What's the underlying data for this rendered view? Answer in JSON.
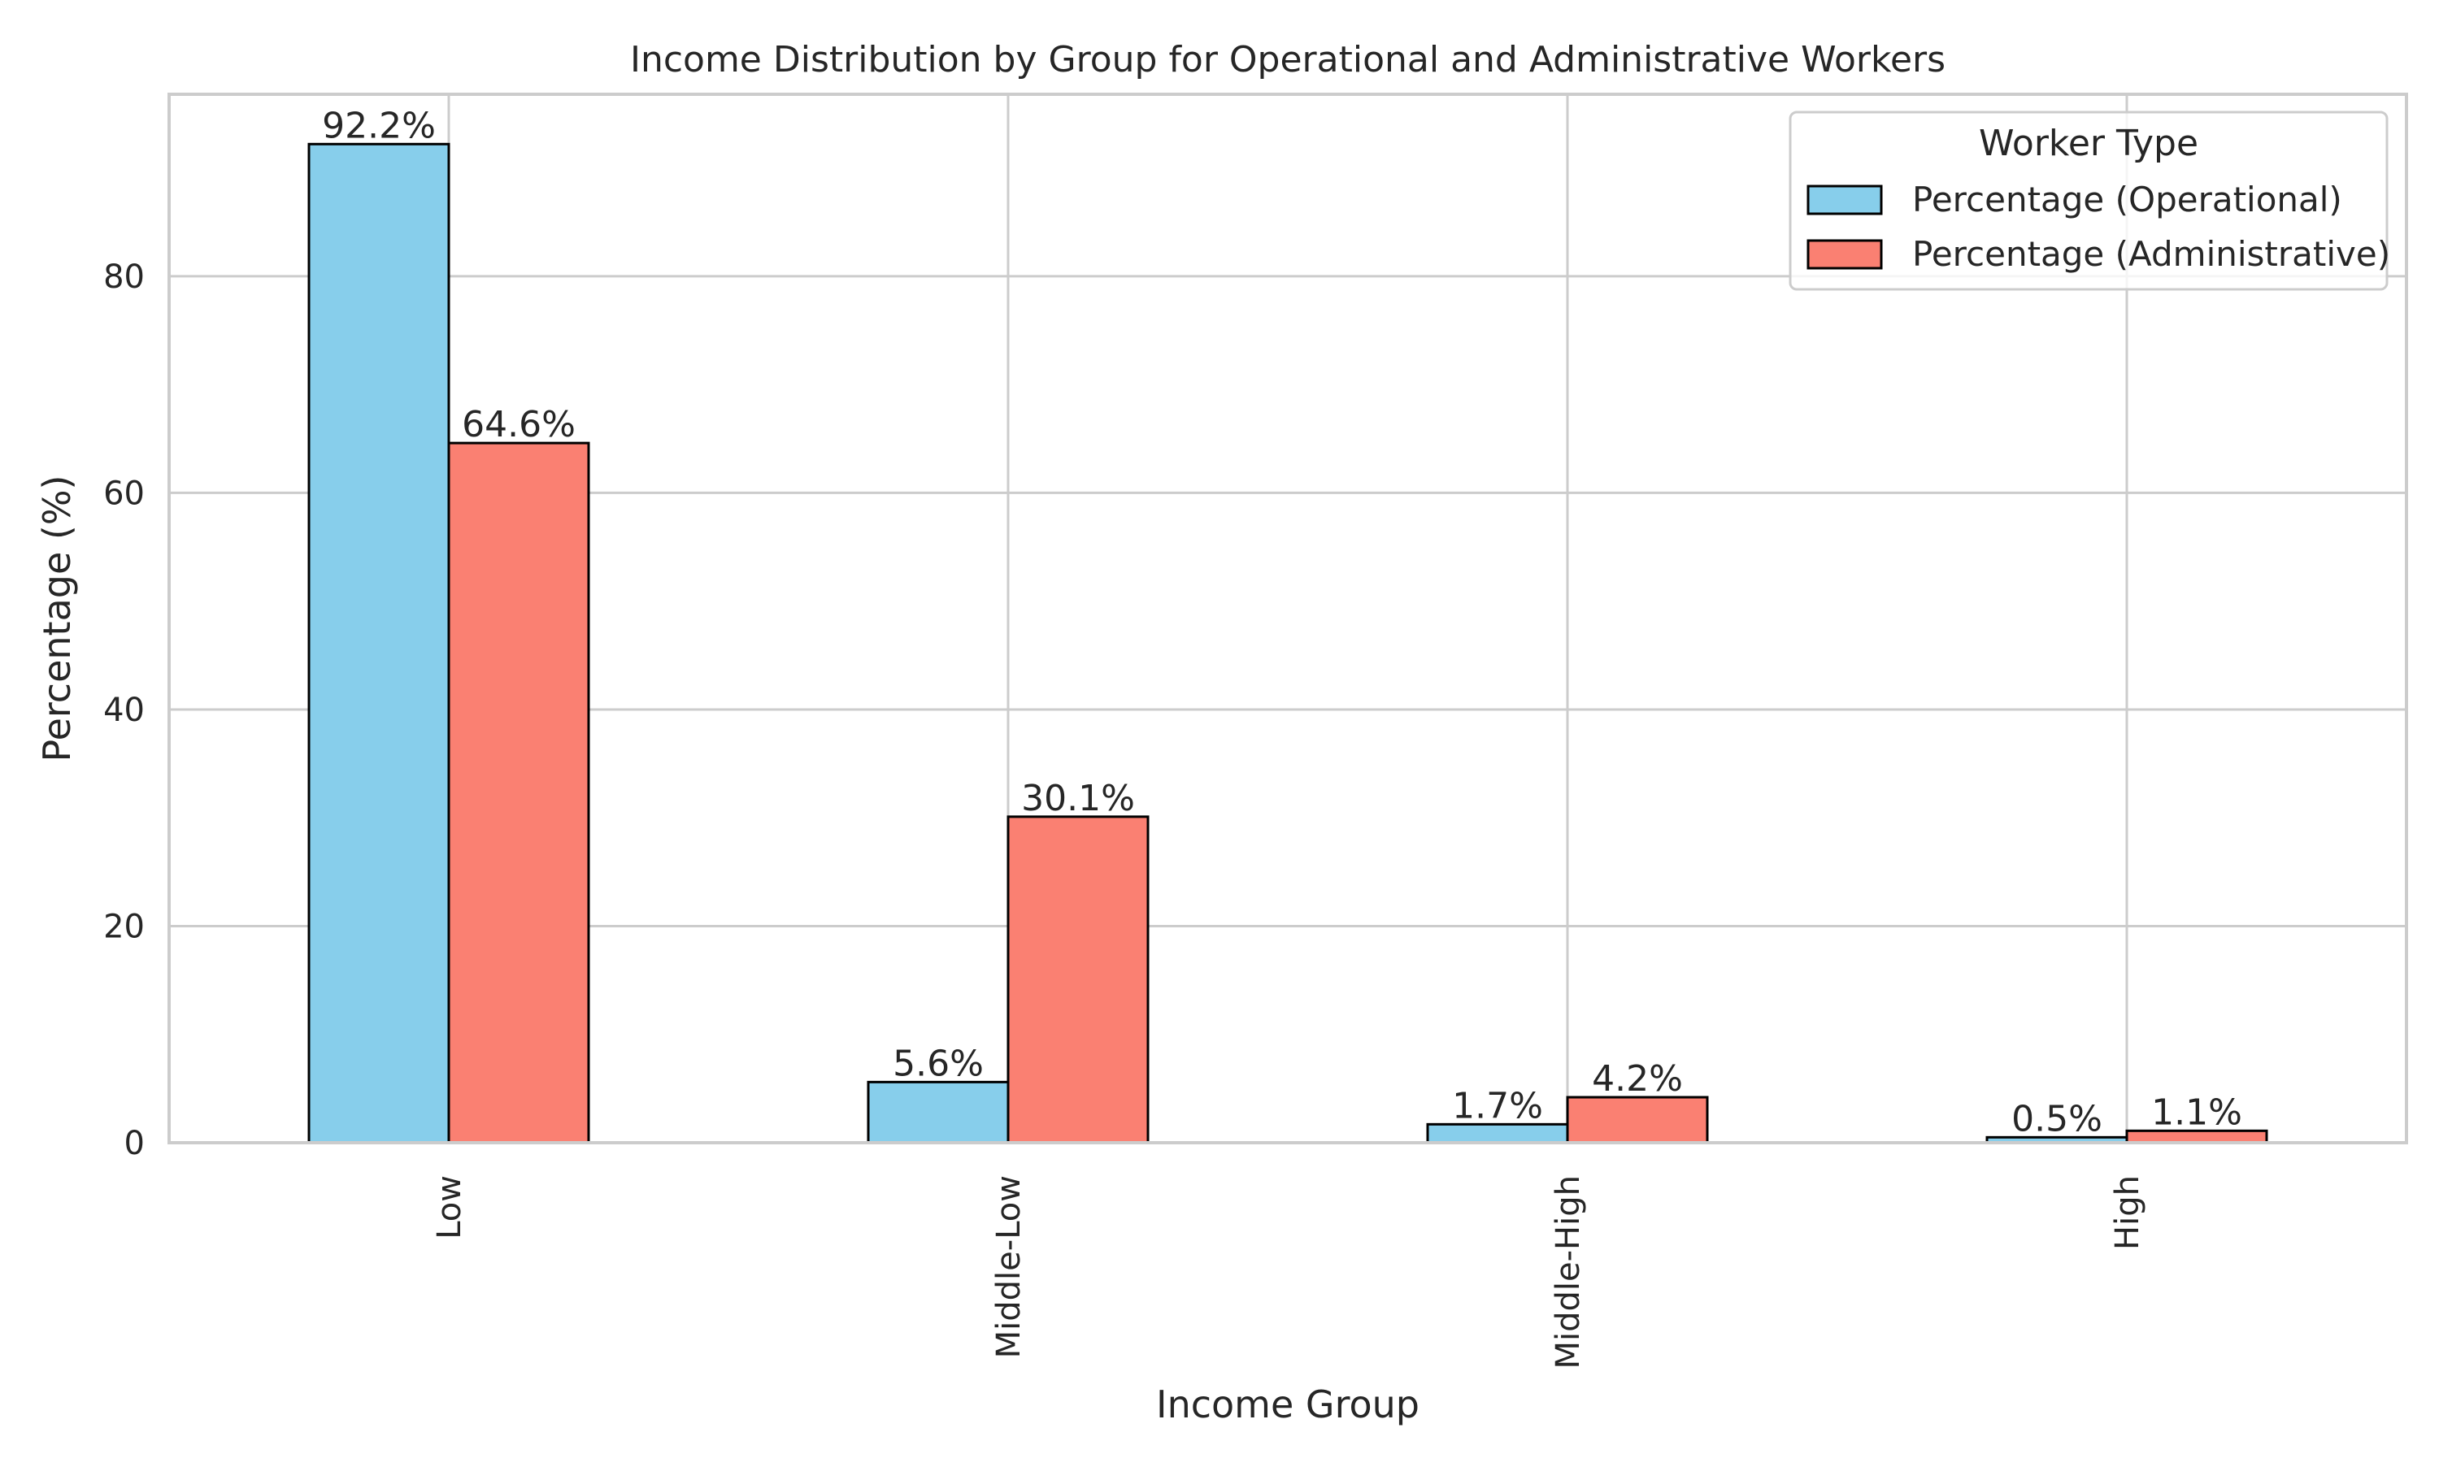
{
  "chart_data": {
    "type": "bar",
    "title": "Income Distribution by Group for Operational and Administrative Workers",
    "xlabel": "Income Group",
    "ylabel": "Percentage (%)",
    "categories": [
      "Low",
      "Middle-Low",
      "Middle-High",
      "High"
    ],
    "series": [
      {
        "name": "Percentage (Operational)",
        "values": [
          92.2,
          5.6,
          1.7,
          0.5
        ],
        "labels": [
          "92.2%",
          "5.6%",
          "1.7%",
          "0.5%"
        ],
        "color": "#87ceeb"
      },
      {
        "name": "Percentage (Administrative)",
        "values": [
          64.6,
          30.1,
          4.2,
          1.1
        ],
        "labels": [
          "64.6%",
          "30.1%",
          "4.2%",
          "1.1%"
        ],
        "color": "#fa8072"
      }
    ],
    "ylim": [
      0,
      96.8
    ],
    "yticks": [
      0,
      20,
      40,
      60,
      80
    ],
    "grid": true,
    "legend": {
      "title": "Worker Type",
      "placement": "top-right"
    },
    "colors": {
      "grid": "#cccccc",
      "axes_edge": "#cccccc",
      "bar_edge": "#000000",
      "text": "#262626"
    }
  }
}
